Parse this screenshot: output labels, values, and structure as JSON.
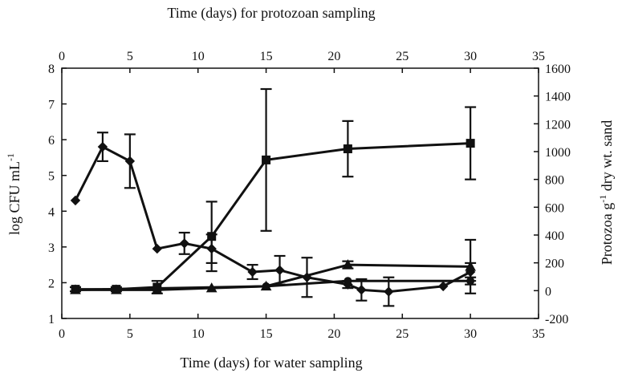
{
  "chart_data": {
    "type": "line",
    "x_bottom": {
      "label": "Time (days) for water sampling",
      "range": [
        0,
        35
      ],
      "ticks": [
        0,
        5,
        10,
        15,
        20,
        25,
        30,
        35
      ]
    },
    "x_top": {
      "label": "Time (days) for protozoan sampling",
      "range": [
        0,
        35
      ],
      "ticks": [
        0,
        5,
        10,
        15,
        20,
        25,
        30,
        35
      ]
    },
    "y_left": {
      "label": "log CFU mL",
      "label_sup": "-1",
      "range": [
        1,
        8
      ],
      "ticks": [
        1,
        2,
        3,
        4,
        5,
        6,
        7,
        8
      ]
    },
    "y_right": {
      "label_a": "Protozoa g",
      "label_sup": "-1",
      "label_b": " dry wt. sand",
      "range": [
        -200,
        1600
      ],
      "ticks": [
        -200,
        0,
        200,
        400,
        600,
        800,
        1000,
        1200,
        1400,
        1600
      ]
    },
    "series": [
      {
        "marker": "diamond",
        "axis": "left",
        "x_axis": "bottom",
        "points": [
          {
            "x": 1,
            "y": 4.3
          },
          {
            "x": 3,
            "y": 5.8,
            "err": 0.4
          },
          {
            "x": 5,
            "y": 5.4,
            "err": 0.75
          },
          {
            "x": 7,
            "y": 2.95
          },
          {
            "x": 9,
            "y": 3.1,
            "err": 0.3
          },
          {
            "x": 11,
            "y": 2.95,
            "err": 0.4
          },
          {
            "x": 14,
            "y": 2.3,
            "err": 0.2
          },
          {
            "x": 16,
            "y": 2.35,
            "err": 0.4
          },
          {
            "x": 18,
            "y": 2.15,
            "err": 0.55
          },
          {
            "x": 21,
            "y": 1.95,
            "err": 0.1
          },
          {
            "x": 22,
            "y": 1.8,
            "err": 0.3
          },
          {
            "x": 24,
            "y": 1.75,
            "err": 0.4
          },
          {
            "x": 28,
            "y": 1.9
          },
          {
            "x": 30,
            "y": 2.3,
            "err": 0.25
          }
        ]
      },
      {
        "marker": "triangle",
        "axis": "left",
        "x_axis": "bottom",
        "points": [
          {
            "x": 1,
            "y": 1.8
          },
          {
            "x": 4,
            "y": 1.8
          },
          {
            "x": 7,
            "y": 1.8
          },
          {
            "x": 11,
            "y": 1.85
          },
          {
            "x": 15,
            "y": 1.9
          },
          {
            "x": 21,
            "y": 2.5,
            "err": 0.1
          },
          {
            "x": 30,
            "y": 2.45,
            "err": 0.75
          }
        ]
      },
      {
        "marker": "square",
        "axis": "right",
        "x_axis": "top",
        "points": [
          {
            "x": 1,
            "y": 10,
            "err": 15
          },
          {
            "x": 4,
            "y": 10,
            "err": 15
          },
          {
            "x": 7,
            "y": 25,
            "err": 45
          },
          {
            "x": 11,
            "y": 390,
            "err": 250
          },
          {
            "x": 15,
            "y": 940,
            "err": 510
          },
          {
            "x": 21,
            "y": 1020,
            "err": 200
          },
          {
            "x": 30,
            "y": 1060,
            "err": 260
          }
        ]
      },
      {
        "marker": "circle",
        "axis": "left",
        "x_axis": "bottom",
        "points": [
          {
            "x": 1,
            "y": 1.8
          },
          {
            "x": 15,
            "y": 1.9
          },
          {
            "x": 21,
            "y": 2.05
          },
          {
            "x": 30,
            "y": 2.05,
            "err": 0.1
          }
        ]
      }
    ]
  }
}
